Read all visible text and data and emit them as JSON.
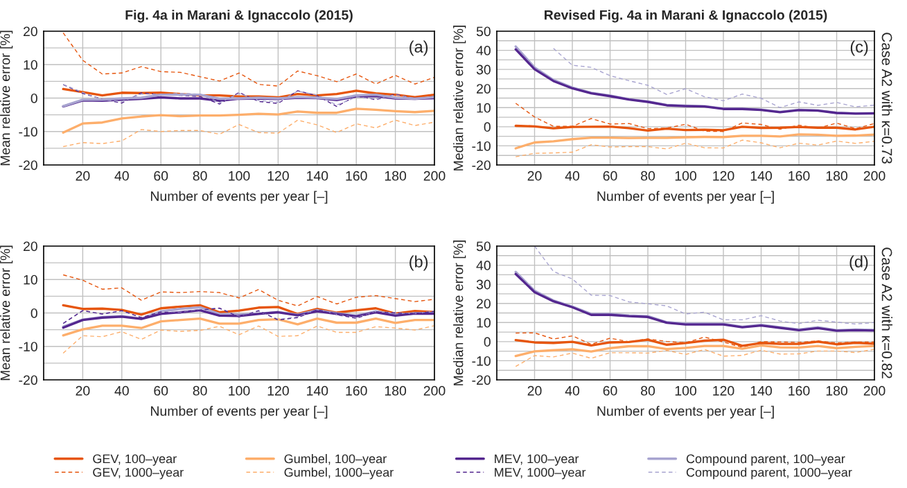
{
  "chart_data": [
    {
      "type": "line",
      "title": "Fig. 4a in Marani & Ignaccolo (2015)",
      "xlabel": "Number of events per year [–]",
      "ylabel": "Mean relative error [%]",
      "annotations": [
        "(a)"
      ],
      "legend": "bottom",
      "grid": true,
      "x": [
        10,
        20,
        30,
        40,
        50,
        60,
        70,
        80,
        90,
        100,
        110,
        120,
        130,
        140,
        150,
        160,
        170,
        180,
        190,
        200
      ],
      "xlim": [
        0,
        200
      ],
      "xticks": [
        20,
        40,
        60,
        80,
        100,
        120,
        140,
        160,
        180,
        200
      ],
      "ylim": [
        -20,
        20
      ],
      "yticks": [
        -20,
        {
          "value": -15,
          "label": null
        },
        -10,
        {
          "value": -5,
          "label": null
        },
        0,
        {
          "value": 5,
          "label": null
        },
        10,
        {
          "value": 15,
          "label": null
        },
        20
      ],
      "series": [
        {
          "name": "GEV, 100–year",
          "color": "#e6550d",
          "line_style": "solid",
          "values": [
            2.7,
            1.8,
            0.8,
            1.6,
            1.5,
            1.6,
            1.2,
            0.8,
            0.8,
            0.5,
            0.5,
            0.2,
            1.2,
            0.8,
            1.2,
            2.2,
            1.4,
            1.0,
            0.3,
            1.0
          ]
        },
        {
          "name": "GEV, 1000–year",
          "color": "#e6550d",
          "line_style": "dashed",
          "values": [
            19.5,
            11.3,
            7.2,
            7.5,
            9.4,
            7.9,
            7.7,
            6.4,
            5.1,
            7.5,
            4.1,
            3.6,
            8.1,
            6.7,
            4.9,
            7.2,
            4.2,
            6.8,
            4.2,
            6.2
          ]
        },
        {
          "name": "Gumbel, 100–year",
          "color": "#fdae6b",
          "line_style": "solid",
          "values": [
            -10.3,
            -7.6,
            -7.3,
            -6.1,
            -5.5,
            -5.1,
            -5.4,
            -5.2,
            -5.2,
            -5.0,
            -4.7,
            -4.9,
            -4.0,
            -4.4,
            -4.4,
            -3.2,
            -3.5,
            -3.9,
            -4.2,
            -3.8
          ]
        },
        {
          "name": "Gumbel, 1000–year",
          "color": "#fdae6b",
          "line_style": "dashed",
          "values": [
            -14.5,
            -13.3,
            -13.6,
            -12.8,
            -9.4,
            -10.0,
            -9.7,
            -9.7,
            -10.8,
            -7.9,
            -10.3,
            -10.5,
            -6.6,
            -8.0,
            -10.3,
            -7.7,
            -8.9,
            -6.6,
            -8.2,
            -7.2
          ]
        },
        {
          "name": "MEV, 100–year",
          "color": "#54278f",
          "line_style": "solid",
          "values": [
            -2.5,
            -0.7,
            -0.8,
            -0.5,
            -0.2,
            0.2,
            -0.1,
            -0.1,
            -0.8,
            -0.2,
            -0.1,
            -0.3,
            0.1,
            0,
            -0.6,
            0.5,
            0.6,
            -0.1,
            -0.2,
            0
          ]
        },
        {
          "name": "MEV, 1000–year",
          "color": "#54278f",
          "line_style": "dashed",
          "values": [
            4.0,
            1.4,
            -0.3,
            -1.5,
            1.6,
            1.0,
            0.8,
            0.5,
            -1.8,
            1.7,
            -1.0,
            -1.6,
            2.2,
            0.7,
            -2.5,
            0.7,
            -0.5,
            1.2,
            -0.2,
            0.5
          ]
        },
        {
          "name": "Compound parent, 100–year",
          "color": "#a8a4d0",
          "line_style": "solid",
          "values": [
            -2.4,
            -0.5,
            -0.5,
            -0.1,
            0.1,
            1.0,
            1.0,
            1.0,
            -0.2,
            -0.1,
            0.1,
            -0.1,
            0.3,
            0.1,
            -0.3,
            0.8,
            1.0,
            0.1,
            -0.2,
            0.3
          ]
        },
        {
          "name": "Compound parent, 1000–year",
          "color": "#a8a4d0",
          "line_style": "dashed",
          "values": [
            4.1,
            1.7,
            -0.5,
            -1.0,
            1.2,
            1.1,
            1.4,
            1.2,
            -1.4,
            1.4,
            -0.7,
            -1.2,
            2.1,
            0.9,
            -2.1,
            0.3,
            -0.2,
            1.0,
            -0.1,
            0.3
          ]
        }
      ]
    },
    {
      "type": "line",
      "title": "Revised Fig. 4a in Marani & Ignaccolo (2015)",
      "xlabel": "Number of events per year [–]",
      "ylabel": "Median relative error [%]",
      "y2label": "Case A2 with κ=0.73",
      "annotations": [
        "(c)"
      ],
      "grid": true,
      "x": [
        10,
        20,
        30,
        40,
        50,
        60,
        70,
        80,
        90,
        100,
        110,
        120,
        130,
        140,
        150,
        160,
        170,
        180,
        190,
        200
      ],
      "xlim": [
        0,
        200
      ],
      "xticks": [
        20,
        40,
        60,
        80,
        100,
        120,
        140,
        160,
        180,
        200
      ],
      "ylim": [
        -20,
        50
      ],
      "yticks": [
        -20,
        {
          "value": -15,
          "label": null
        },
        -10,
        {
          "value": -5,
          "label": null
        },
        0,
        {
          "value": 5,
          "label": null
        },
        10,
        {
          "value": 15,
          "label": null
        },
        20,
        {
          "value": 25,
          "label": null
        },
        30,
        {
          "value": 35,
          "label": null
        },
        40,
        {
          "value": 45,
          "label": null
        },
        50
      ],
      "series": [
        {
          "color": "#e6550d",
          "line_style": "solid",
          "values": [
            0.5,
            0.2,
            -0.8,
            -0.1,
            0,
            0.1,
            -0.7,
            -2.0,
            -1.0,
            -1.7,
            -1.6,
            -1.8,
            0,
            -0.6,
            -0.5,
            -0.1,
            -0.5,
            -0.5,
            -1.4,
            0
          ]
        },
        {
          "color": "#e6550d",
          "line_style": "dashed",
          "values": [
            12.3,
            5.1,
            0.2,
            0.2,
            4.3,
            1.4,
            1.7,
            -1.0,
            -0.7,
            1.3,
            -2.3,
            -2.5,
            2.0,
            1.2,
            -1.3,
            0.8,
            -0.7,
            1.9,
            -1.0,
            1.7
          ]
        },
        {
          "color": "#fdae6b",
          "line_style": "solid",
          "values": [
            -11.3,
            -8.2,
            -7.6,
            -6.5,
            -5.7,
            -5.7,
            -5.9,
            -5.8,
            -5.8,
            -5.5,
            -5.3,
            -5.4,
            -4.7,
            -4.7,
            -5.1,
            -4.0,
            -4.2,
            -4.7,
            -4.6,
            -4.1
          ]
        },
        {
          "color": "#fdae6b",
          "line_style": "dashed",
          "values": [
            -15.7,
            -13.9,
            -13.7,
            -13.3,
            -9.4,
            -10.6,
            -10.4,
            -10.4,
            -11.6,
            -8.6,
            -11.0,
            -11.1,
            -7.0,
            -8.4,
            -11.0,
            -8.6,
            -9.6,
            -7.5,
            -8.7,
            -7.6
          ]
        },
        {
          "color": "#a8a4d0",
          "line_style": "solid",
          "values": [
            42,
            31,
            24.5,
            20.5,
            17.8,
            16.3,
            14.4,
            13.2,
            11.4,
            11.0,
            10.8,
            9.5,
            9.5,
            9.0,
            7.8,
            8.9,
            8.6,
            7.3,
            7.0,
            7.1
          ]
        },
        {
          "color": "#54278f",
          "line_style": "solid",
          "values": [
            40.5,
            30.1,
            23.9,
            20.1,
            17.5,
            16.0,
            14.2,
            13.0,
            11.2,
            10.8,
            10.6,
            9.3,
            9.3,
            8.8,
            7.6,
            8.7,
            8.4,
            7.2,
            6.9,
            7.0
          ]
        },
        {
          "color": "#a8a4d0",
          "line_style": "dashed",
          "values": [
            null,
            null,
            41,
            32.2,
            31.1,
            26.7,
            24.1,
            21.7,
            16.9,
            19.9,
            15.7,
            13.6,
            17.1,
            14.9,
            10.0,
            13.0,
            11.2,
            12.7,
            10.4,
            11.3
          ]
        }
      ]
    },
    {
      "type": "line",
      "xlabel": "Number of events per year [–]",
      "ylabel": "Mean relative error [%]",
      "annotations": [
        "(b)"
      ],
      "grid": true,
      "x": [
        10,
        20,
        30,
        40,
        50,
        60,
        70,
        80,
        90,
        100,
        110,
        120,
        130,
        140,
        150,
        160,
        170,
        180,
        190,
        200
      ],
      "xlim": [
        0,
        200
      ],
      "xticks": [
        20,
        40,
        60,
        80,
        100,
        120,
        140,
        160,
        180,
        200
      ],
      "ylim": [
        -20,
        20
      ],
      "yticks": [
        -20,
        {
          "value": -15,
          "label": null
        },
        -10,
        {
          "value": -5,
          "label": null
        },
        0,
        {
          "value": 5,
          "label": null
        },
        10,
        {
          "value": 15,
          "label": null
        },
        20
      ],
      "series": [
        {
          "color": "#e6550d",
          "line_style": "solid",
          "values": [
            2.3,
            1.2,
            1.3,
            0.9,
            -0.5,
            1.4,
            1.9,
            2.3,
            0.2,
            0.7,
            1.6,
            1.8,
            -0.3,
            1.2,
            0.1,
            0.8,
            1.4,
            -0.2,
            0.6,
            0.3
          ]
        },
        {
          "color": "#e6550d",
          "line_style": "dashed",
          "values": [
            11.4,
            9.8,
            7.1,
            7.5,
            3.8,
            6.3,
            6.1,
            6.4,
            6.1,
            4.5,
            7.0,
            3.8,
            2.1,
            4.9,
            2.7,
            4.7,
            5.2,
            4.3,
            3.4,
            4.1
          ]
        },
        {
          "color": "#fdae6b",
          "line_style": "solid",
          "values": [
            -6.7,
            -4.9,
            -3.8,
            -3.8,
            -4.5,
            -2.5,
            -2.1,
            -1.7,
            -3.2,
            -3.2,
            -2.1,
            -1.9,
            -3.4,
            -1.7,
            -2.9,
            -2.9,
            -1.7,
            -3.0,
            -2.1,
            -2.1
          ]
        },
        {
          "color": "#fdae6b",
          "line_style": "dashed",
          "values": [
            -12.0,
            -6.8,
            -7.1,
            -5.6,
            -7.9,
            -5.1,
            -5.5,
            -5.2,
            -4.0,
            -6.5,
            -3.9,
            -7.0,
            -6.8,
            -3.9,
            -5.8,
            -5.8,
            -4.1,
            -4.5,
            -5.1,
            -3.8
          ]
        },
        {
          "color": "#a8a4d0",
          "line_style": "solid",
          "values": [
            -4.1,
            -2.0,
            -1.2,
            -0.9,
            -1.7,
            0.5,
            1.2,
            1.7,
            -0.3,
            -0.5,
            -0.2,
            0.3,
            -0.5,
            0.8,
            -0.1,
            -0.8,
            0.5,
            -0.5,
            -0.1,
            0
          ]
        },
        {
          "color": "#54278f",
          "line_style": "solid",
          "values": [
            -4.4,
            -2.1,
            -1.4,
            -1.1,
            -1.8,
            -0.3,
            0.2,
            0.8,
            -0.8,
            -0.9,
            -0.3,
            0.2,
            -0.7,
            0.5,
            -0.3,
            -1.0,
            0.2,
            -0.8,
            -0.2,
            -0.2
          ]
        },
        {
          "color": "#a8a4d0",
          "line_style": "dashed",
          "values": [
            -3.2,
            0.8,
            -0.4,
            0.6,
            -1.3,
            0.4,
            0.2,
            1.0,
            1.5,
            -1.0,
            0.5,
            -1.9,
            -1.2,
            1.1,
            -0.4,
            -1.4,
            0.4,
            0.1,
            -0.2,
            0.6
          ]
        },
        {
          "color": "#54278f",
          "line_style": "dashed",
          "values": [
            -3.1,
            0.7,
            -0.3,
            0.7,
            -1.4,
            0.3,
            0,
            0.9,
            1.4,
            -1.2,
            0.7,
            -2.1,
            -1.4,
            1.0,
            -0.5,
            -1.6,
            0.3,
            0,
            -0.3,
            0.5
          ]
        }
      ]
    },
    {
      "type": "line",
      "xlabel": "Number of events per year [–]",
      "ylabel": "Median relative error [%]",
      "y2label": "Case A2 with κ=0.82",
      "annotations": [
        "(d)"
      ],
      "grid": true,
      "x": [
        10,
        20,
        30,
        40,
        50,
        60,
        70,
        80,
        90,
        100,
        110,
        120,
        130,
        140,
        150,
        160,
        170,
        180,
        190,
        200
      ],
      "xlim": [
        0,
        200
      ],
      "xticks": [
        20,
        40,
        60,
        80,
        100,
        120,
        140,
        160,
        180,
        200
      ],
      "ylim": [
        -20,
        50
      ],
      "yticks": [
        -20,
        {
          "value": -15,
          "label": null
        },
        -10,
        {
          "value": -5,
          "label": null
        },
        0,
        {
          "value": 5,
          "label": null
        },
        10,
        {
          "value": 15,
          "label": null
        },
        20,
        {
          "value": 25,
          "label": null
        },
        30,
        {
          "value": 35,
          "label": null
        },
        40,
        {
          "value": 45,
          "label": null
        },
        50
      ],
      "series": [
        {
          "color": "#e6550d",
          "line_style": "dashed",
          "values": [
            4.5,
            4.6,
            1.4,
            3.0,
            -1.4,
            1.8,
            0,
            1.4,
            0.1,
            -0.6,
            2.4,
            -0.2,
            -3.0,
            0,
            -0.2,
            -0.4,
            0.4,
            -0.7,
            -0.2,
            -0.2
          ]
        },
        {
          "color": "#fdae6b",
          "line_style": "dashed",
          "values": [
            -13.0,
            -7.3,
            -8.0,
            -6.0,
            -8.7,
            -5.8,
            -5.8,
            -6.0,
            -4.6,
            -6.7,
            -4.1,
            -7.6,
            -7.2,
            -4.5,
            -6.5,
            -6.4,
            -4.9,
            -4.9,
            -5.7,
            -4.0
          ]
        },
        {
          "color": "#fdae6b",
          "line_style": "solid",
          "values": [
            -7.5,
            -5.1,
            -4.5,
            -4.0,
            -5.2,
            -3.4,
            -2.4,
            -2.4,
            -3.9,
            -3.3,
            -2.3,
            -2.3,
            -3.7,
            -2.0,
            -3.0,
            -3.1,
            -2.3,
            -3.4,
            -2.7,
            -2.3
          ]
        },
        {
          "color": "#e6550d",
          "line_style": "solid",
          "values": [
            0.8,
            -0.4,
            -0.7,
            -0.1,
            -2.0,
            -0.4,
            -0.2,
            1.0,
            -1.6,
            -0.7,
            0.5,
            1.0,
            -2.2,
            -0.7,
            -1.2,
            -1.2,
            0,
            -1.4,
            -0.6,
            -1.1
          ]
        },
        {
          "color": "#a8a4d0",
          "line_style": "solid",
          "values": [
            36.5,
            26.6,
            21.5,
            18.3,
            14.5,
            14.5,
            13.7,
            13.3,
            10.2,
            9.4,
            9.4,
            9.3,
            7.8,
            8.8,
            7.5,
            6.3,
            7.5,
            6.0,
            6.3,
            6.1
          ]
        },
        {
          "color": "#54278f",
          "line_style": "solid",
          "values": [
            35.4,
            25.9,
            21.1,
            18.0,
            14.0,
            14.0,
            13.3,
            12.9,
            9.9,
            9.0,
            9.0,
            9.0,
            7.5,
            8.4,
            7.2,
            6.0,
            7.1,
            5.7,
            6.0,
            5.8
          ]
        },
        {
          "color": "#a8a4d0",
          "line_style": "dashed",
          "values": [
            null,
            50,
            36.7,
            32.8,
            24.3,
            24.1,
            20.8,
            19.8,
            18.7,
            14.5,
            15.4,
            11.4,
            11.4,
            13.6,
            10.8,
            9.4,
            11.2,
            10.2,
            9.2,
            10.0
          ]
        }
      ]
    }
  ]
}
